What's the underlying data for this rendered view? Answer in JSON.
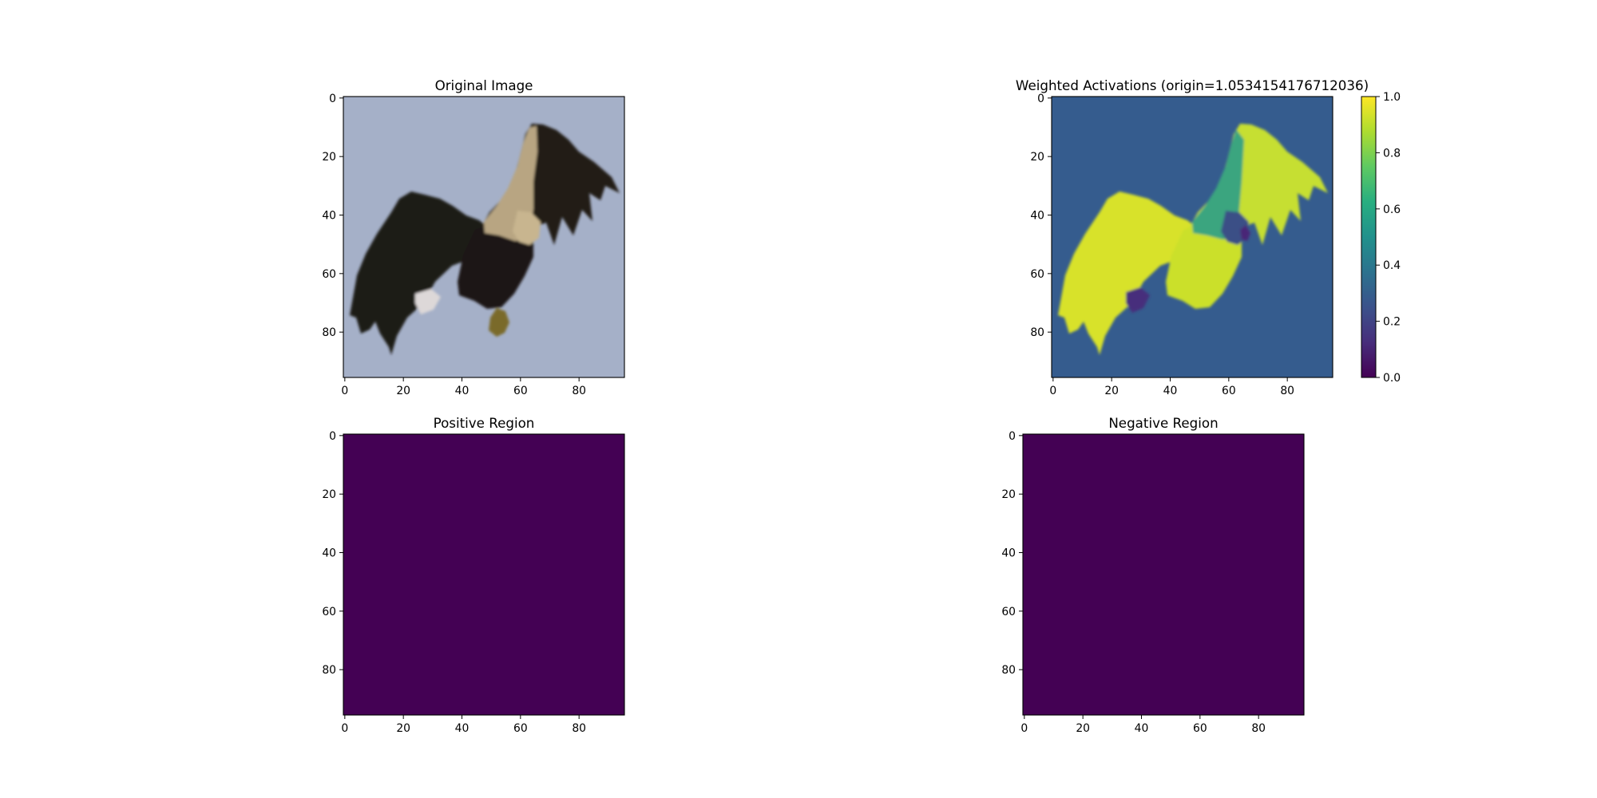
{
  "chart_data": [
    {
      "type": "heatmap",
      "title": "Original Image",
      "content": "photograph of an eagle in flight",
      "x_ticks": [
        0,
        20,
        40,
        60,
        80
      ],
      "y_ticks": [
        0,
        20,
        40,
        60,
        80
      ],
      "xlim": [
        -0.5,
        95.5
      ],
      "ylim": [
        95.5,
        -0.5
      ],
      "grid": false,
      "colors": {
        "sky": "#a5b0c8",
        "dark_feathers": "#1e1a17",
        "light_feathers": "#b8a582",
        "talons": "#7a6a2a"
      }
    },
    {
      "type": "heatmap",
      "title": "Weighted Activations (origin=1.0534154176712036)",
      "colormap": "viridis",
      "x_ticks": [
        0,
        20,
        40,
        60,
        80
      ],
      "y_ticks": [
        0,
        20,
        40,
        60,
        80
      ],
      "xlim": [
        -0.5,
        95.5
      ],
      "ylim": [
        95.5,
        -0.5
      ],
      "grid": false,
      "background_value": 0.3,
      "bird_value": 0.95,
      "colorbar": {
        "min": 0.0,
        "max": 1.0,
        "ticks": [
          0.0,
          0.2,
          0.4,
          0.6,
          0.8,
          1.0
        ],
        "tick_labels": [
          "0.0",
          "0.2",
          "0.4",
          "0.6",
          "0.8",
          "1.0"
        ]
      }
    },
    {
      "type": "heatmap",
      "title": "Positive Region",
      "colormap": "viridis",
      "uniform_value": 0.0,
      "x_ticks": [
        0,
        20,
        40,
        60,
        80
      ],
      "y_ticks": [
        0,
        20,
        40,
        60,
        80
      ],
      "xlim": [
        -0.5,
        95.5
      ],
      "ylim": [
        95.5,
        -0.5
      ],
      "grid": false,
      "fill_color": "#440154"
    },
    {
      "type": "heatmap",
      "title": "Negative Region",
      "colormap": "viridis",
      "uniform_value": 0.0,
      "x_ticks": [
        0,
        20,
        40,
        60,
        80
      ],
      "y_ticks": [
        0,
        20,
        40,
        60,
        80
      ],
      "xlim": [
        -0.5,
        95.5
      ],
      "ylim": [
        95.5,
        -0.5
      ],
      "grid": false,
      "fill_color": "#440154"
    }
  ]
}
